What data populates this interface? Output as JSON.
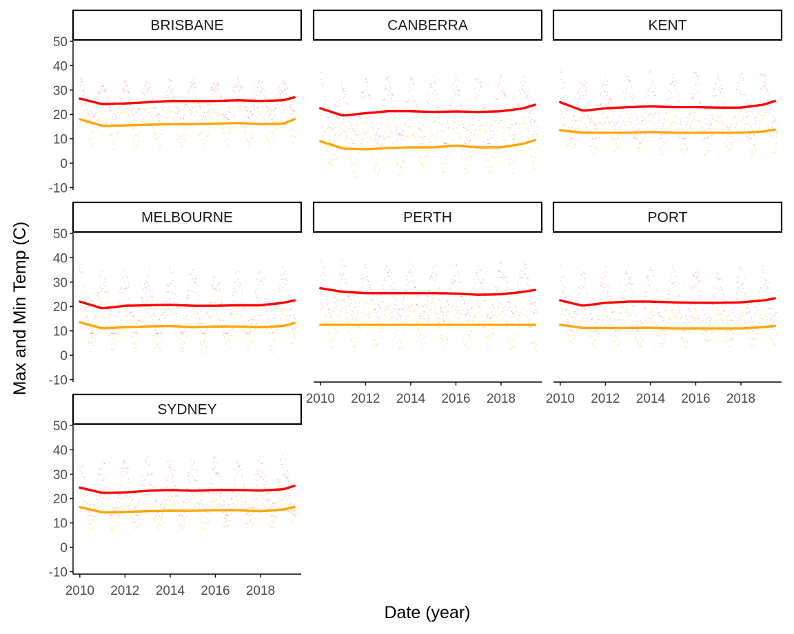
{
  "chart_data": {
    "type": "scatter",
    "xlabel": "Date (year)",
    "ylabel": "Max and Min Temp (C)",
    "xlim": [
      2009.7,
      2019.8
    ],
    "ylim": [
      -11,
      50
    ],
    "x_ticks": [
      2010,
      2012,
      2014,
      2016,
      2018
    ],
    "x_tick_labels": [
      "2010",
      "2012",
      "2014",
      "2016",
      "2018"
    ],
    "y_ticks": [
      -10,
      0,
      10,
      20,
      30,
      40,
      50
    ],
    "y_tick_labels": [
      "-10",
      "0",
      "10",
      "20",
      "30",
      "40",
      "50"
    ],
    "grid": false,
    "legend": "none",
    "colors": {
      "max": "#ff0000",
      "min": "#ffa500",
      "strip_border": "#000000",
      "axis": "#000000"
    },
    "series_overlay": "daily points with LOESS trend line",
    "trend_x": [
      2010,
      2011,
      2012,
      2013,
      2014,
      2015,
      2016,
      2017,
      2018,
      2019,
      2019.5
    ],
    "panels": [
      {
        "label": "BRISBANE",
        "max_trend": [
          26.5,
          24.2,
          24.5,
          25.0,
          25.5,
          25.5,
          25.5,
          25.8,
          25.5,
          25.8,
          27.0
        ],
        "min_trend": [
          18.0,
          15.3,
          15.5,
          15.8,
          16.0,
          16.0,
          16.2,
          16.5,
          16.0,
          16.2,
          18.0
        ],
        "max_range": [
          14,
          35
        ],
        "min_range": [
          3,
          25
        ]
      },
      {
        "label": "CANBERRA",
        "max_trend": [
          22.5,
          19.5,
          20.5,
          21.3,
          21.3,
          21.0,
          21.2,
          21.0,
          21.3,
          22.5,
          24.0
        ],
        "min_trend": [
          9.0,
          6.0,
          5.7,
          6.2,
          6.5,
          6.5,
          7.2,
          6.5,
          6.5,
          8.0,
          9.5
        ],
        "max_range": [
          8,
          42
        ],
        "min_range": [
          -7,
          20
        ]
      },
      {
        "label": "KENT",
        "max_trend": [
          25.0,
          21.5,
          22.5,
          23.0,
          23.3,
          23.0,
          23.0,
          22.8,
          22.8,
          24.0,
          25.5
        ],
        "min_trend": [
          13.5,
          12.5,
          12.5,
          12.5,
          12.8,
          12.5,
          12.5,
          12.5,
          12.5,
          13.0,
          13.8
        ],
        "max_range": [
          10,
          44
        ],
        "min_range": [
          3,
          26
        ]
      },
      {
        "label": "MELBOURNE",
        "max_trend": [
          22.0,
          19.2,
          20.3,
          20.5,
          20.7,
          20.3,
          20.3,
          20.5,
          20.5,
          21.5,
          22.5
        ],
        "min_trend": [
          13.5,
          11.0,
          11.5,
          11.8,
          12.0,
          11.5,
          11.8,
          11.8,
          11.5,
          12.0,
          13.2
        ],
        "max_range": [
          9,
          44
        ],
        "min_range": [
          0,
          25
        ]
      },
      {
        "label": "PERTH",
        "max_trend": [
          27.5,
          26.0,
          25.5,
          25.5,
          25.5,
          25.5,
          25.3,
          24.8,
          25.0,
          26.0,
          26.8
        ],
        "min_trend": [
          12.5,
          12.5,
          12.5,
          12.5,
          12.5,
          12.5,
          12.5,
          12.5,
          12.5,
          12.5,
          12.5
        ],
        "max_range": [
          14,
          44
        ],
        "min_range": [
          1,
          26
        ]
      },
      {
        "label": "PORT",
        "max_trend": [
          22.5,
          20.3,
          21.5,
          22.0,
          22.0,
          21.7,
          21.5,
          21.5,
          21.7,
          22.5,
          23.3
        ],
        "min_trend": [
          12.5,
          11.2,
          11.2,
          11.2,
          11.3,
          11.0,
          11.0,
          11.0,
          11.0,
          11.5,
          12.0
        ],
        "max_range": [
          10,
          44
        ],
        "min_range": [
          3,
          22
        ]
      },
      {
        "label": "SYDNEY",
        "max_trend": [
          24.5,
          22.3,
          22.5,
          23.2,
          23.5,
          23.2,
          23.5,
          23.5,
          23.3,
          23.8,
          25.2
        ],
        "min_trend": [
          16.5,
          14.3,
          14.5,
          14.8,
          15.0,
          15.0,
          15.2,
          15.2,
          14.8,
          15.5,
          16.5
        ],
        "max_range": [
          13,
          45
        ],
        "min_range": [
          5,
          24
        ]
      }
    ]
  }
}
